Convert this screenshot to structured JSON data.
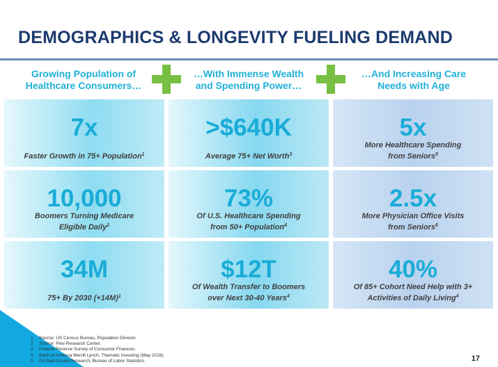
{
  "title": "DEMOGRAPHICS & LONGEVITY FUELING DEMAND",
  "columns": [
    {
      "line1": "Growing Population of",
      "line2": "Healthcare Consumers…"
    },
    {
      "line1": "…With Immense Wealth",
      "line2": "and Spending Power…"
    },
    {
      "line1": "…And Increasing Care",
      "line2": "Needs with Age"
    }
  ],
  "tiles": [
    {
      "value": "7x",
      "line1": "Faster Growth in 75+ Population",
      "sup1": "1",
      "line2": "",
      "sup2": ""
    },
    {
      "value": ">$640K",
      "line1": "Average 75+ Net Worth",
      "sup1": "3",
      "line2": "",
      "sup2": ""
    },
    {
      "value": "5x",
      "line1": "More Healthcare Spending",
      "sup1": "",
      "line2": "from Seniors",
      "sup2": "5"
    },
    {
      "value": "10,000",
      "line1": "Boomers Turning Medicare",
      "sup1": "",
      "line2": "Eligible Daily",
      "sup2": "2"
    },
    {
      "value": "73%",
      "line1": "Of U.S. Healthcare Spending",
      "sup1": "",
      "line2": "from 50+ Population",
      "sup2": "4"
    },
    {
      "value": "2.5x",
      "line1": "More Physician Office Visits",
      "sup1": "",
      "line2": "from Seniors",
      "sup2": "6"
    },
    {
      "value": "34M",
      "line1": "75+ By 2030 (+14M)",
      "sup1": "1",
      "line2": "",
      "sup2": ""
    },
    {
      "value": "$12T",
      "line1": "Of Wealth Transfer to Boomers",
      "sup1": "",
      "line2": "over Next 30-40 Years",
      "sup2": "4"
    },
    {
      "value": "40%",
      "line1": "Of 85+ Cohort Need Help with 3+",
      "sup1": "",
      "line2": "Activities of Daily Living",
      "sup2": "4"
    }
  ],
  "footnotes": [
    {
      "n": "1.",
      "text": "Source: US Census Bureau, Population Division."
    },
    {
      "n": "2.",
      "text": "Source: Pew Research Center."
    },
    {
      "n": "3.",
      "text": "Federal Reserve Survey of Consumer Finances."
    },
    {
      "n": "4.",
      "text": "Bank of America Merrill Lynch, Thematic Investing (May 2016)."
    },
    {
      "n": "5.",
      "text": "ISI Real Estate Research; Bureau of Labor Statistics."
    }
  ],
  "page_number": "17",
  "colors": {
    "title": "#1c3a6e",
    "accent_cyan": "#19acd7",
    "plus_green": "#77c043",
    "corner_blue": "#12a9e0"
  }
}
